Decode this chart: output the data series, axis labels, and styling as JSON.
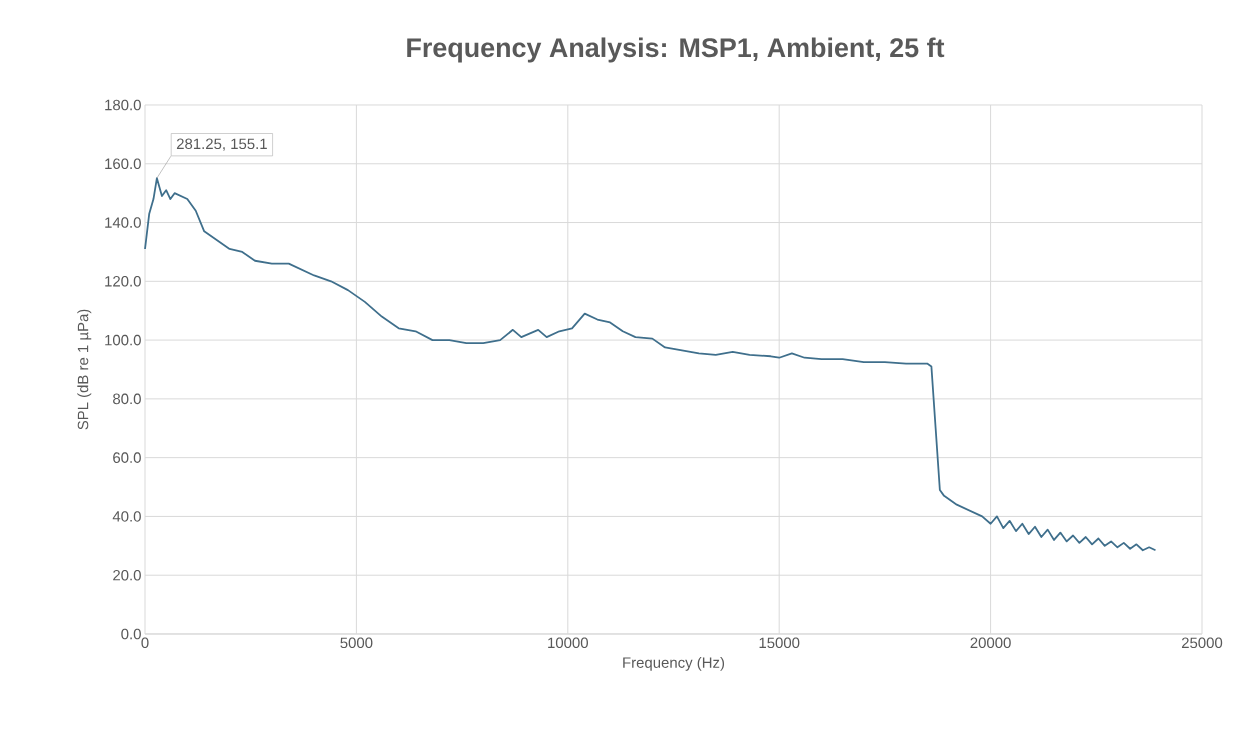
{
  "chart_data": {
    "type": "line",
    "title": "Frequency Analysis: MSP1, Ambient, 25 ft",
    "xlabel": "Frequency (Hz)",
    "ylabel": "SPL (dB re 1 µPa)",
    "x": [
      0,
      100,
      200,
      281.25,
      400,
      500,
      600,
      700,
      1000,
      1200,
      1400,
      1700,
      2000,
      2300,
      2600,
      3000,
      3400,
      3700,
      4000,
      4400,
      4800,
      5200,
      5600,
      6000,
      6400,
      6800,
      7200,
      7600,
      8000,
      8400,
      8700,
      8900,
      9300,
      9500,
      9800,
      10100,
      10400,
      10700,
      11000,
      11300,
      11600,
      12000,
      12300,
      12700,
      13100,
      13500,
      13900,
      14300,
      14800,
      15000,
      15300,
      15600,
      16000,
      16500,
      17000,
      17500,
      18000,
      18500,
      18600,
      18700,
      18800,
      18900,
      19200,
      19500,
      19800,
      20000,
      20150,
      20300,
      20450,
      20600,
      20750,
      20900,
      21050,
      21200,
      21350,
      21500,
      21650,
      21800,
      21950,
      22100,
      22250,
      22400,
      22550,
      22700,
      22850,
      23000,
      23150,
      23300,
      23450,
      23600,
      23750,
      23900
    ],
    "series": [
      {
        "color": "#3f6f8c",
        "values": [
          131,
          143,
          148,
          155.1,
          149,
          151,
          148,
          150,
          148,
          144,
          137,
          134,
          131,
          130,
          127,
          126,
          126,
          124,
          122,
          120,
          117,
          113,
          108,
          104,
          103,
          100,
          100,
          99,
          99,
          100,
          103.5,
          101,
          103.5,
          101,
          103,
          104,
          109,
          107,
          106,
          103,
          101,
          100.5,
          97.5,
          96.5,
          95.5,
          95,
          96,
          95,
          94.5,
          94,
          95.5,
          94,
          93.5,
          93.5,
          92.5,
          92.5,
          92,
          92,
          91,
          70,
          49,
          47,
          44,
          42,
          40,
          37.5,
          40,
          36,
          38.5,
          35,
          37.5,
          34,
          36.5,
          33,
          35.5,
          32,
          34.5,
          31.5,
          33.5,
          31,
          33,
          30.5,
          32.5,
          30,
          31.5,
          29.5,
          31,
          29,
          30.5,
          28.5,
          29.5,
          28.5
        ]
      }
    ],
    "xlim": [
      0,
      25000
    ],
    "xticks": [
      0,
      5000,
      10000,
      15000,
      20000,
      25000
    ],
    "ylim": [
      0,
      180
    ],
    "yticks": [
      {
        "value": 0,
        "label": "0.0"
      },
      {
        "value": 20,
        "label": "20.0"
      },
      {
        "value": 40,
        "label": "40.0"
      },
      {
        "value": 60,
        "label": "60.0"
      },
      {
        "value": 80,
        "label": "80.0"
      },
      {
        "value": 100,
        "label": "100.0"
      },
      {
        "value": 120,
        "label": "120.0"
      },
      {
        "value": 140,
        "label": "140.0"
      },
      {
        "value": 160,
        "label": "160.0"
      },
      {
        "value": 180,
        "label": "180.0"
      }
    ],
    "grid": true,
    "marker": "none",
    "line_style": "solid",
    "annotations": [
      {
        "text": "281.25, 155.1",
        "x": 281.25,
        "y": 155.1
      }
    ]
  }
}
